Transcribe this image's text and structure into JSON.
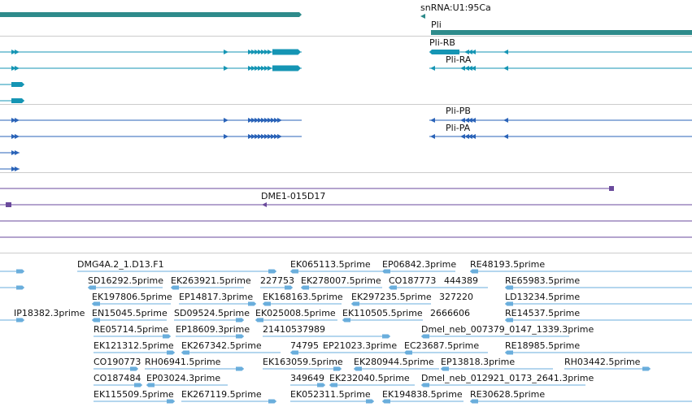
{
  "colors": {
    "snrna": "#2e8b8b",
    "flybase_transcript": "#1595b4",
    "annotation_transcript": "#2a63b8",
    "bac_clone": "#6a4a9c",
    "est": "#6aaedc",
    "separator": "#cccccc"
  },
  "tracks": {
    "snrna": {
      "name": "snRNA:U1:95Ca",
      "gene": "Pli"
    },
    "flybase_transcripts": {
      "names": [
        "Pli-RB",
        "Pli-RA"
      ]
    },
    "annotation_transcripts": {
      "names": [
        "Pli-PB",
        "Pli-PA"
      ]
    },
    "bac_clones": {
      "name": "DME1-015D17"
    },
    "est_alignments": {
      "labels": [
        "DMG4A.2_1.D13.F1",
        "EK065113.5prime",
        "EP06842.3prime",
        "RE48193.5prime",
        "SD16292.5prime",
        "EK263921.5prime",
        "227753",
        "EK278007.5prime",
        "CO187773",
        "444389",
        "RE65983.5prime",
        "EK197806.5prime",
        "EP14817.3prime",
        "EK168163.5prime",
        "EK297235.5prime",
        "327220",
        "LD13234.5prime",
        "IP18382.3prime",
        "EN15045.5prime",
        "SD09524.5prime",
        "EK025008.5prime",
        "EK110505.5prime",
        "2666606",
        "RE14537.5prime",
        "RE05714.5prime",
        "EP18609.3prime",
        "21410537989",
        "Dmel_neb_007379_0147_1339.3prime",
        "EK121312.5prime",
        "EK267342.5prime",
        "74795",
        "EP21023.3prime",
        "EC23687.5prime",
        "RE18985.5prime",
        "CO190773",
        "RH06941.5prime",
        "EK163059.5prime",
        "EK280944.5prime",
        "EP13818.3prime",
        "RH03442.5prime",
        "CO187484",
        "EP03024.3prime",
        "349649",
        "EK232040.5prime",
        "Dmel_neb_012921_0173_2641.3prime",
        "EK115509.5prime",
        "EK267119.5prime",
        "EK052311.5prime",
        "EK194838.5prime",
        "RE30628.5prime"
      ]
    }
  }
}
